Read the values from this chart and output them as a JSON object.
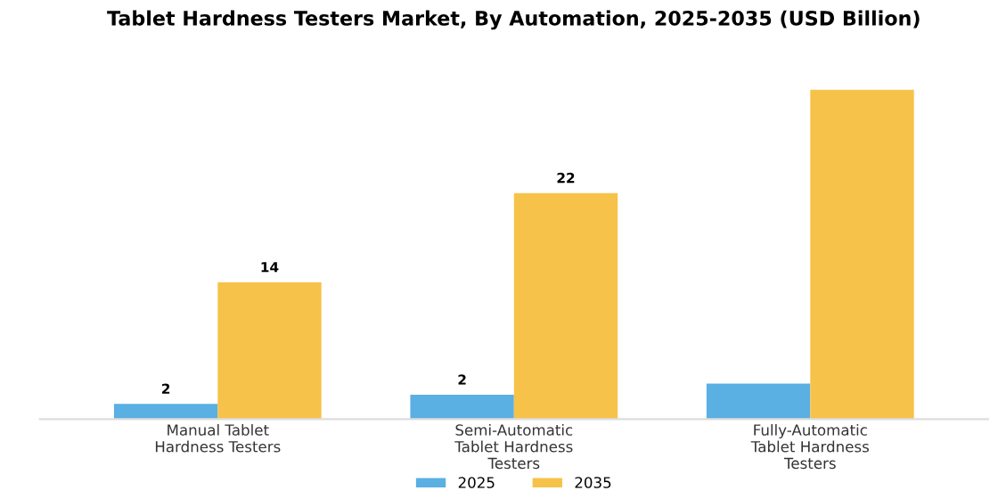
{
  "chart_data": {
    "type": "bar",
    "title": "Tablet Hardness Testers Market, By Automation, 2025-2035 (USD Billion)",
    "categories": [
      "Manual Tablet\nHardness Testers",
      "Semi-Automatic\nTablet Hardness\nTesters",
      "Fully-Automatic\nTablet Hardness\nTesters"
    ],
    "series": [
      {
        "name": "2025",
        "color": "#5aafe3",
        "values": [
          1.5,
          2.4,
          3.5
        ],
        "value_labels": [
          "2",
          "2",
          null
        ]
      },
      {
        "name": "2035",
        "color": "#f7c24a",
        "values": [
          13.5,
          22.3,
          32.5
        ],
        "value_labels": [
          "14",
          "22",
          null
        ]
      }
    ],
    "legend": "bottom",
    "grid": false
  }
}
